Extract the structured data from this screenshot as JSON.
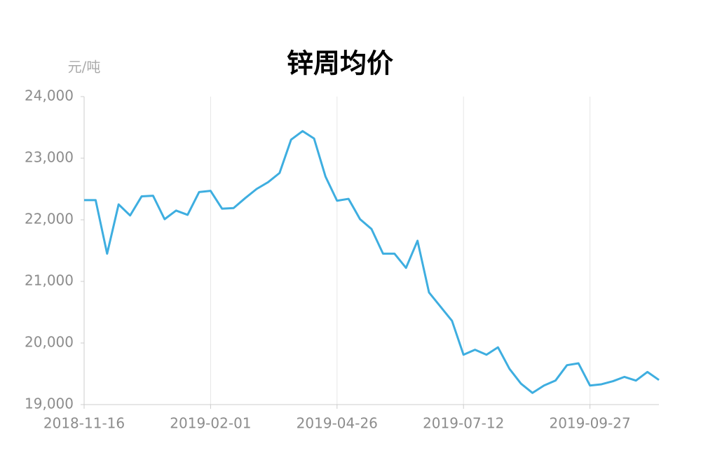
{
  "chart_data": {
    "type": "line",
    "title": "锌周均价",
    "y_unit": "元/吨",
    "categories": [
      "2018-11-16",
      null,
      null,
      null,
      null,
      null,
      null,
      null,
      null,
      null,
      null,
      "2019-02-01",
      null,
      null,
      null,
      null,
      null,
      null,
      null,
      null,
      null,
      null,
      "2019-04-26",
      null,
      null,
      null,
      null,
      null,
      null,
      null,
      null,
      null,
      null,
      "2019-07-12",
      null,
      null,
      null,
      null,
      null,
      null,
      null,
      null,
      null,
      null,
      "2019-09-27",
      null,
      null,
      null,
      null,
      null,
      null
    ],
    "series": [
      {
        "name": "锌周均价",
        "color": "#3eaee0",
        "values": [
          22320,
          22320,
          21450,
          22250,
          22070,
          22380,
          22390,
          22010,
          22150,
          22080,
          22450,
          22470,
          22180,
          22190,
          22350,
          22500,
          22610,
          22760,
          23300,
          23440,
          23320,
          22700,
          22310,
          22340,
          22010,
          21850,
          21450,
          21450,
          21220,
          21660,
          20820,
          20590,
          20360,
          19810,
          19890,
          19810,
          19930,
          19580,
          19340,
          19190,
          19310,
          19390,
          19640,
          19670,
          19310,
          19330,
          19380,
          19450,
          19390,
          19530,
          19400
        ]
      }
    ],
    "ylim": [
      19000,
      24000
    ],
    "yticks": [
      {
        "value": 19000,
        "label": "19,000"
      },
      {
        "value": 20000,
        "label": "20,000"
      },
      {
        "value": 21000,
        "label": "21,000"
      },
      {
        "value": 22000,
        "label": "22,000"
      },
      {
        "value": 23000,
        "label": "23,000"
      },
      {
        "value": 24000,
        "label": "24,000"
      }
    ],
    "grid": true
  }
}
